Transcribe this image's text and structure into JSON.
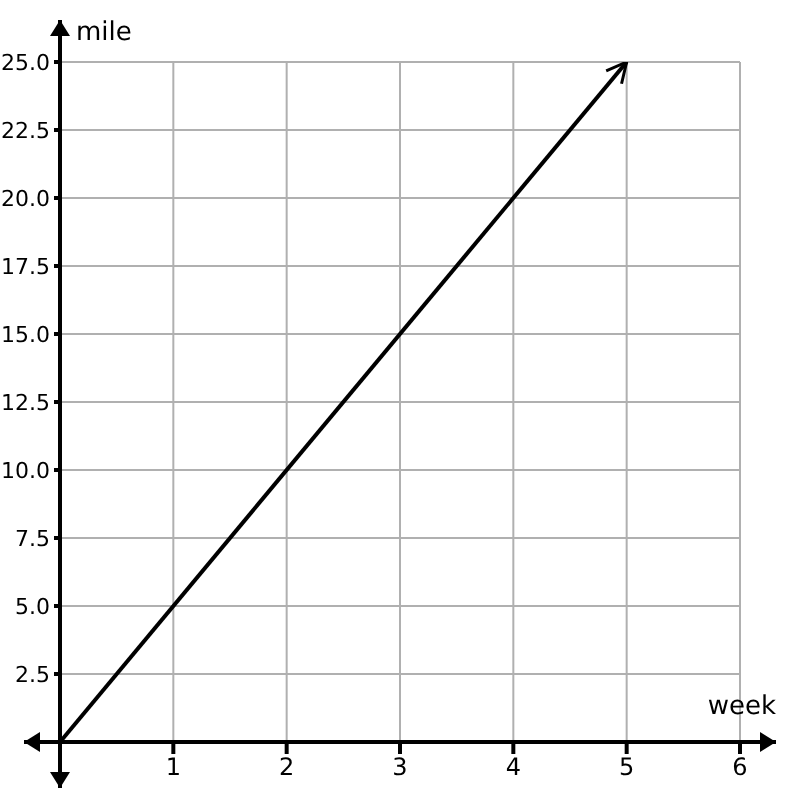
{
  "chart_data": {
    "type": "line",
    "xlabel": "week",
    "ylabel": "mile",
    "x": [
      0,
      5
    ],
    "series": [
      {
        "color": "#000000",
        "values": [
          0,
          25
        ]
      }
    ],
    "xlim": [
      0,
      6
    ],
    "xticks": [
      {
        "value": 0,
        "label": null
      },
      1,
      2,
      3,
      4,
      5,
      6
    ],
    "ylim": [
      0,
      25
    ],
    "yticks": [
      {
        "value": 0,
        "label": null
      },
      2.5,
      {
        "value": 5,
        "label": "5.0"
      },
      7.5,
      {
        "value": 10,
        "label": "10.0"
      },
      12.5,
      {
        "value": 15,
        "label": "15.0"
      },
      17.5,
      {
        "value": 20,
        "label": "20.0"
      },
      22.5,
      {
        "value": 25,
        "label": "25.0"
      }
    ],
    "grid": true,
    "legend": false,
    "marker": "none",
    "line_style": "solid"
  }
}
